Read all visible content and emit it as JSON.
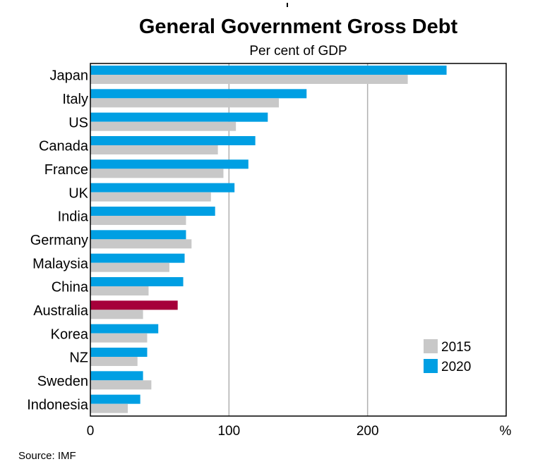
{
  "chart_data": {
    "type": "bar",
    "orientation": "horizontal",
    "title": "General Government Gross Debt",
    "subtitle": "Per cent of GDP",
    "unit_label": "%",
    "categories": [
      "Japan",
      "Italy",
      "US",
      "Canada",
      "France",
      "UK",
      "India",
      "Germany",
      "Malaysia",
      "China",
      "Australia",
      "Korea",
      "NZ",
      "Sweden",
      "Indonesia"
    ],
    "series": [
      {
        "name": "2020",
        "values": [
          257,
          156,
          128,
          119,
          114,
          104,
          90,
          69,
          68,
          67,
          63,
          49,
          41,
          38,
          36
        ]
      },
      {
        "name": "2015",
        "values": [
          229,
          136,
          105,
          92,
          96,
          87,
          69,
          73,
          57,
          42,
          38,
          41,
          34,
          44,
          27
        ]
      }
    ],
    "highlight": {
      "category": "Australia",
      "series": "2020",
      "color": "#a6003a"
    },
    "colors": {
      "2020": "#009fe3",
      "2015": "#c8c8c8",
      "gridline": "#b0b0b0"
    },
    "xlim": [
      0,
      300
    ],
    "xticks": [
      "0",
      "100",
      "200"
    ],
    "legend": {
      "placement": "bottom-right",
      "order": [
        "2015",
        "2020"
      ]
    },
    "grid": true,
    "source": "Source:   IMF"
  }
}
